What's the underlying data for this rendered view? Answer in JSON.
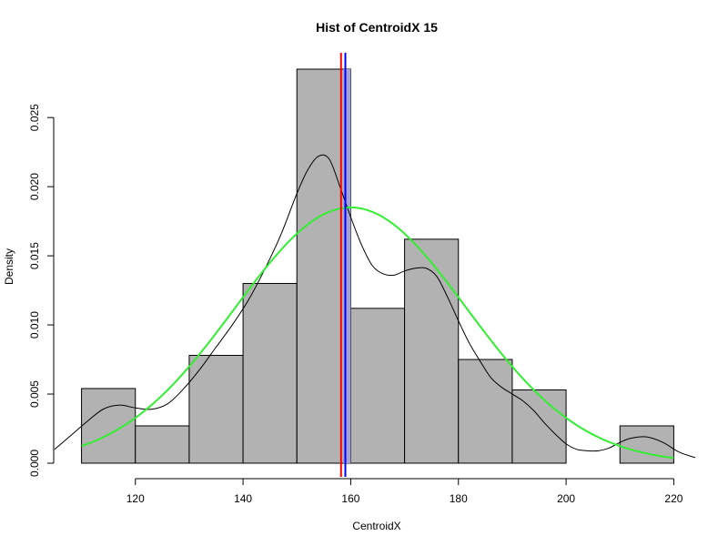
{
  "chart_data": {
    "type": "bar",
    "subtype": "histogram",
    "title": "Hist of CentroidX  15",
    "xlabel": "CentroidX",
    "ylabel": "Density",
    "xlim": [
      105,
      225
    ],
    "ylim": [
      0,
      0.0285
    ],
    "x_ticks": [
      120,
      140,
      160,
      180,
      200,
      220
    ],
    "x_tick_labels": [
      "120",
      "140",
      "160",
      "180",
      "200",
      "220"
    ],
    "y_ticks": [
      0,
      0.005,
      0.01,
      0.015,
      0.02,
      0.025
    ],
    "y_tick_labels": [
      "0.000",
      "0.005",
      "0.010",
      "0.015",
      "0.020",
      "0.025"
    ],
    "bins": [
      {
        "from": 110,
        "to": 120,
        "density": 0.0054
      },
      {
        "from": 120,
        "to": 130,
        "density": 0.0027
      },
      {
        "from": 130,
        "to": 140,
        "density": 0.0078
      },
      {
        "from": 140,
        "to": 150,
        "density": 0.013
      },
      {
        "from": 150,
        "to": 160,
        "density": 0.0285
      },
      {
        "from": 160,
        "to": 170,
        "density": 0.0112
      },
      {
        "from": 170,
        "to": 180,
        "density": 0.0162
      },
      {
        "from": 180,
        "to": 190,
        "density": 0.0075
      },
      {
        "from": 190,
        "to": 200,
        "density": 0.0053
      },
      {
        "from": 200,
        "to": 210,
        "density": 0.0
      },
      {
        "from": 210,
        "to": 220,
        "density": 0.0027
      }
    ],
    "highlight_region": {
      "from": 158.6,
      "to": 160,
      "color": "#a3a3d6"
    },
    "vertical_lines": [
      {
        "x": 158.2,
        "color": "#ff0000"
      },
      {
        "x": 159.0,
        "color": "#0000ff"
      }
    ],
    "normal_curve": {
      "mean": 160,
      "sd": 21.5,
      "peak": 0.0185,
      "color": "#33ee33"
    },
    "kde_curve": {
      "color": "#000000",
      "points": [
        [
          105,
          0.001
        ],
        [
          108,
          0.002
        ],
        [
          111,
          0.003
        ],
        [
          114,
          0.0039
        ],
        [
          117,
          0.0042
        ],
        [
          120,
          0.004
        ],
        [
          123,
          0.0039
        ],
        [
          126,
          0.0043
        ],
        [
          129,
          0.0054
        ],
        [
          132,
          0.0068
        ],
        [
          135,
          0.0084
        ],
        [
          138,
          0.01
        ],
        [
          141,
          0.0118
        ],
        [
          144,
          0.014
        ],
        [
          147,
          0.0165
        ],
        [
          150,
          0.0195
        ],
        [
          152,
          0.0212
        ],
        [
          154,
          0.0222
        ],
        [
          156,
          0.022
        ],
        [
          158,
          0.02
        ],
        [
          160,
          0.0178
        ],
        [
          162,
          0.0158
        ],
        [
          164,
          0.0143
        ],
        [
          166,
          0.0137
        ],
        [
          168,
          0.0136
        ],
        [
          170,
          0.0139
        ],
        [
          172,
          0.0141
        ],
        [
          174,
          0.0141
        ],
        [
          176,
          0.0135
        ],
        [
          178,
          0.012
        ],
        [
          180,
          0.0103
        ],
        [
          182,
          0.0087
        ],
        [
          184,
          0.0074
        ],
        [
          186,
          0.0062
        ],
        [
          188,
          0.0055
        ],
        [
          190,
          0.005
        ],
        [
          192,
          0.0045
        ],
        [
          194,
          0.0038
        ],
        [
          196,
          0.0029
        ],
        [
          198,
          0.0021
        ],
        [
          200,
          0.0014
        ],
        [
          202,
          0.001
        ],
        [
          204,
          0.0009
        ],
        [
          206,
          0.0009
        ],
        [
          208,
          0.0011
        ],
        [
          210,
          0.0015
        ],
        [
          212,
          0.0018
        ],
        [
          215,
          0.0019
        ],
        [
          218,
          0.0015
        ],
        [
          221,
          0.0008
        ],
        [
          224,
          0.0004
        ]
      ]
    },
    "grid": false,
    "legend": "none"
  }
}
